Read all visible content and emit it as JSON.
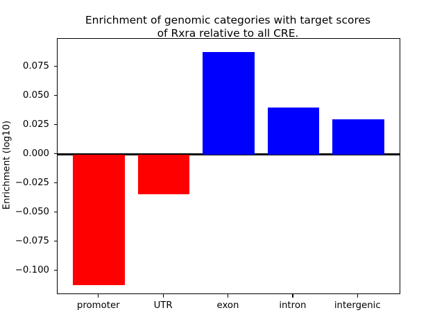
{
  "figure": {
    "title_line1": "Enrichment of genomic categories with target scores",
    "title_line2": "of Rxra relative to all CRE."
  },
  "chart_data": {
    "type": "bar",
    "title": "Enrichment of genomic categories with target scores of Rxra relative to all CRE.",
    "xlabel": "",
    "ylabel": "Enrichment (log10)",
    "categories": [
      "promoter",
      "UTR",
      "exon",
      "intron",
      "intergenic"
    ],
    "values": [
      -0.112,
      -0.034,
      0.088,
      0.04,
      0.03
    ],
    "bar_colors": [
      "#ff0000",
      "#ff0000",
      "#0000ff",
      "#0000ff",
      "#0000ff"
    ],
    "negative_color": "#ff0000",
    "positive_color": "#0000ff",
    "bar_width": 0.8,
    "yticks": [
      0.075,
      0.05,
      0.025,
      0.0,
      -0.025,
      -0.05,
      -0.075,
      -0.1
    ],
    "ytick_labels": [
      "0.075",
      "0.050",
      "0.025",
      "0.000",
      "−0.025",
      "−0.050",
      "−0.075",
      "−0.100"
    ],
    "ylim": [
      -0.1192,
      0.0992
    ],
    "xlim": [
      -0.64,
      4.64
    ],
    "grid": false,
    "legend": null,
    "zero_line": true,
    "zero_line_color": "#000000"
  }
}
